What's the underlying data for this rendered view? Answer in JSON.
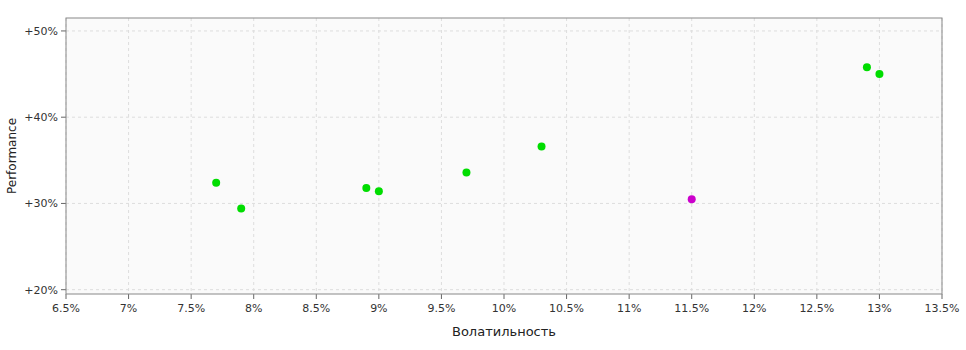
{
  "chart_data": {
    "type": "scatter",
    "xlabel": "Волатильность",
    "ylabel": "Performance",
    "xlim": [
      0.065,
      0.135
    ],
    "ylim": [
      0.195,
      0.515
    ],
    "xticks": [
      {
        "value": 0.065,
        "label": "6.5%"
      },
      {
        "value": 0.07,
        "label": "7%"
      },
      {
        "value": 0.075,
        "label": "7.5%"
      },
      {
        "value": 0.08,
        "label": "8%"
      },
      {
        "value": 0.085,
        "label": "8.5%"
      },
      {
        "value": 0.09,
        "label": "9%"
      },
      {
        "value": 0.095,
        "label": "9.5%"
      },
      {
        "value": 0.1,
        "label": "10%"
      },
      {
        "value": 0.105,
        "label": "10.5%"
      },
      {
        "value": 0.11,
        "label": "11%"
      },
      {
        "value": 0.115,
        "label": "11.5%"
      },
      {
        "value": 0.12,
        "label": "12%"
      },
      {
        "value": 0.125,
        "label": "12.5%"
      },
      {
        "value": 0.13,
        "label": "13%"
      },
      {
        "value": 0.135,
        "label": "13.5%"
      }
    ],
    "yticks": [
      {
        "value": 0.2,
        "label": "+20%"
      },
      {
        "value": 0.3,
        "label": "+30%"
      },
      {
        "value": 0.4,
        "label": "+40%"
      },
      {
        "value": 0.5,
        "label": "+50%"
      }
    ],
    "grid": true,
    "series": [
      {
        "color": "#00dd00",
        "x": [
          0.077,
          0.079,
          0.089,
          0.09,
          0.097,
          0.103,
          0.129,
          0.13
        ],
        "values": [
          0.324,
          0.294,
          0.318,
          0.314,
          0.336,
          0.366,
          0.458,
          0.45
        ]
      },
      {
        "color": "#cc00cc",
        "x": [
          0.115
        ],
        "values": [
          0.305
        ]
      }
    ]
  }
}
